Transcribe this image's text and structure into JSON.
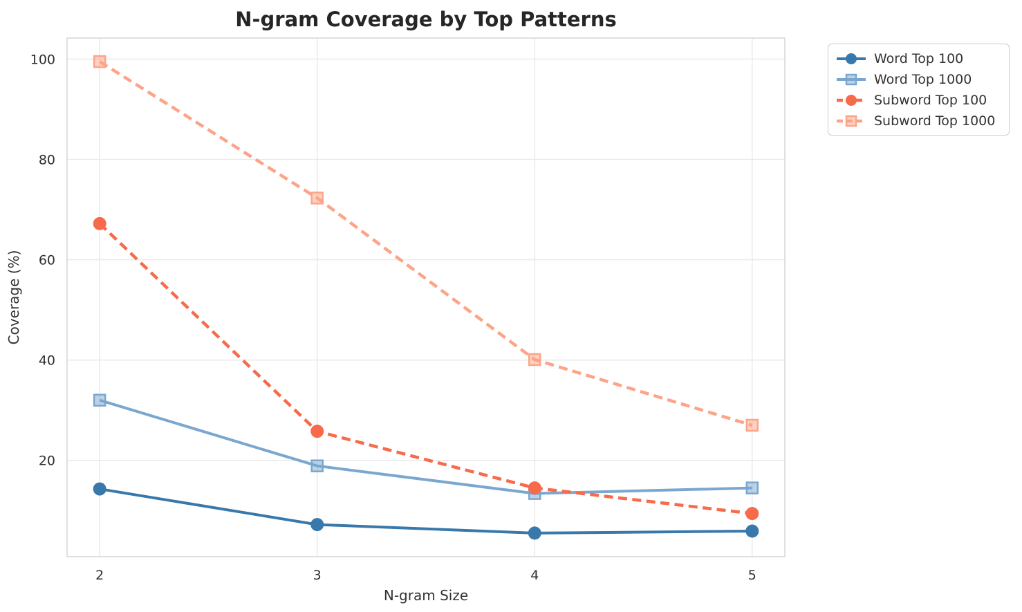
{
  "chart_data": {
    "type": "line",
    "title": "N-gram Coverage by Top Patterns",
    "xlabel": "N-gram Size",
    "ylabel": "Coverage (%)",
    "x": [
      2,
      3,
      4,
      5
    ],
    "xticks": [
      "2",
      "3",
      "4",
      "5"
    ],
    "yticks": [
      "20",
      "40",
      "60",
      "80",
      "100"
    ],
    "ytick_values": [
      20,
      40,
      60,
      80,
      100
    ],
    "xlim": [
      1.85,
      5.15
    ],
    "ylim": [
      0.8,
      104.2
    ],
    "grid": true,
    "legend_position": "outside-upper-right",
    "series": [
      {
        "name": "Word Top 100",
        "values": [
          14.3,
          7.2,
          5.5,
          5.9
        ],
        "color": "#3878ab",
        "line_style": "solid",
        "marker": "circle"
      },
      {
        "name": "Word Top 1000",
        "values": [
          32.0,
          18.9,
          13.4,
          14.5
        ],
        "color": "#7aa7cf",
        "line_style": "solid",
        "marker": "square"
      },
      {
        "name": "Subword Top 100",
        "values": [
          67.2,
          25.8,
          14.5,
          9.4
        ],
        "color": "#f76a4a",
        "line_style": "dashed",
        "marker": "circle"
      },
      {
        "name": "Subword Top 1000",
        "values": [
          99.5,
          72.3,
          40.1,
          27.0
        ],
        "color": "#fda488",
        "line_style": "dashed",
        "marker": "square"
      }
    ],
    "colors": {
      "grid": "#e8e8e8",
      "spine": "#d6d6d6",
      "background": "#ffffff",
      "title_text": "#262626",
      "tick_text": "#2e2e2e"
    }
  }
}
